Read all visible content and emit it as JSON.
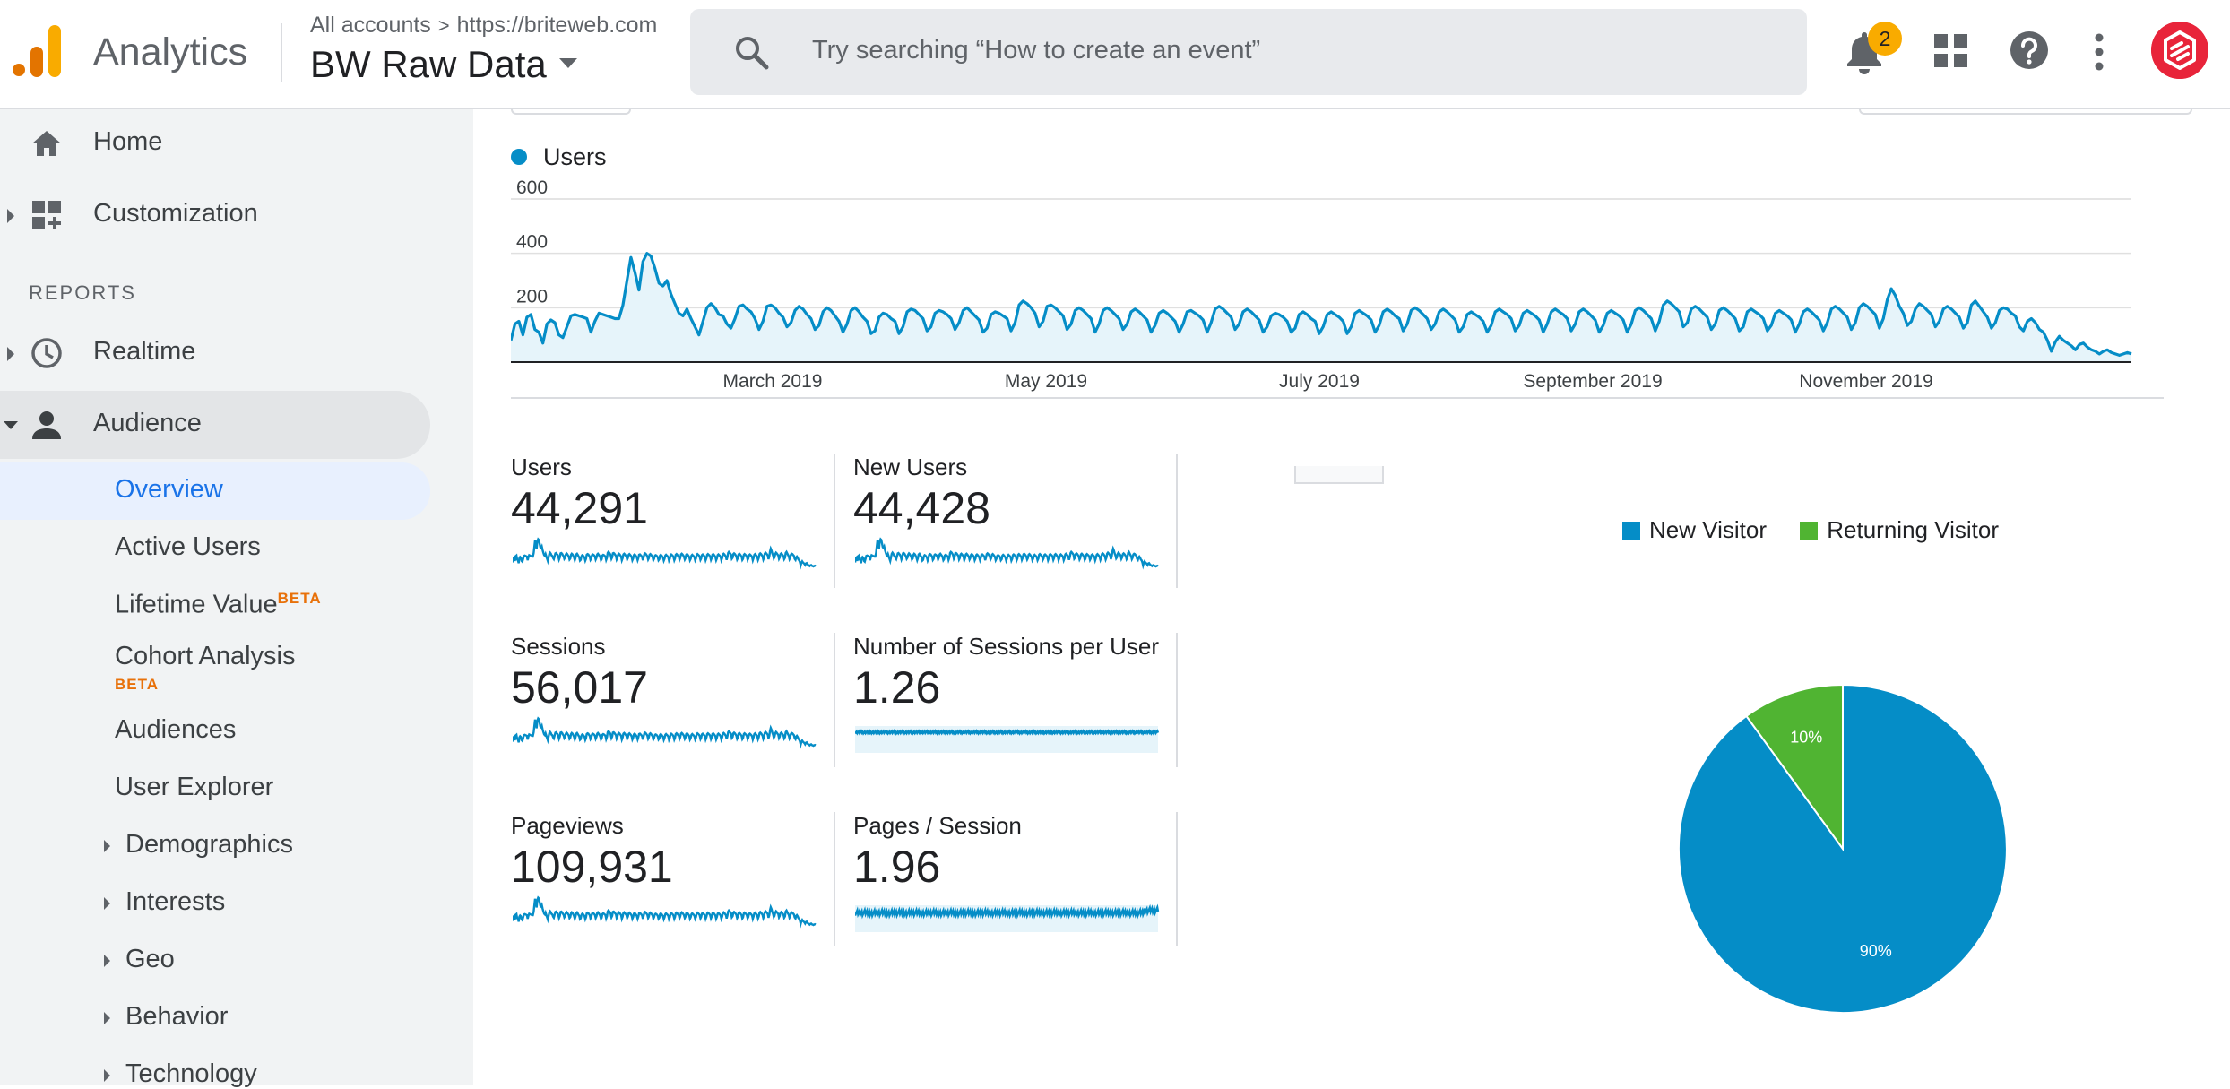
{
  "header": {
    "brand": "Analytics",
    "breadcrumb": {
      "accounts": "All accounts",
      "separator": ">",
      "property": "https://briteweb.com"
    },
    "view_name": "BW Raw Data",
    "search_placeholder": "Try searching “How to create an event”",
    "notifications_count": "2",
    "icons": [
      "analytics-logo-icon",
      "search-icon",
      "bell-icon",
      "apps-grid-icon",
      "help-icon",
      "more-vert-icon",
      "account-avatar"
    ]
  },
  "sidebar": {
    "home": "Home",
    "customization": "Customization",
    "reports_heading": "REPORTS",
    "realtime": "Realtime",
    "audience": "Audience",
    "audience_items": {
      "overview": "Overview",
      "active_users": "Active Users",
      "lifetime_value": "Lifetime Value",
      "lifetime_value_badge": "BETA",
      "cohort_analysis": "Cohort Analysis",
      "cohort_analysis_badge": "BETA",
      "audiences": "Audiences",
      "user_explorer": "User Explorer",
      "demographics": "Demographics",
      "interests": "Interests",
      "geo": "Geo",
      "behavior": "Behavior",
      "technology": "Technology"
    }
  },
  "colors": {
    "series": "#058dc7",
    "returning": "#50b432",
    "accent": "#1a73e8"
  },
  "chart_data": [
    {
      "type": "line",
      "series": [
        {
          "name": "Users",
          "pattern": "daily",
          "values": [
            80,
            140,
            150,
            100,
            165,
            175,
            120,
            110,
            70,
            140,
            155,
            145,
            100,
            90,
            130,
            170,
            175,
            170,
            165,
            160,
            110,
            150,
            180,
            175,
            170,
            165,
            160,
            160,
            210,
            300,
            385,
            330,
            265,
            370,
            400,
            390,
            345,
            290,
            280,
            300,
            250,
            215,
            180,
            170,
            195,
            160,
            130,
            100,
            150,
            200,
            215,
            200,
            175,
            170,
            140,
            125,
            160,
            205,
            210,
            195,
            185,
            160,
            120,
            150,
            205,
            210,
            200,
            180,
            165,
            130,
            145,
            190,
            205,
            195,
            175,
            160,
            120,
            135,
            185,
            200,
            190,
            170,
            150,
            110,
            140,
            190,
            200,
            185,
            165,
            150,
            105,
            115,
            165,
            180,
            175,
            160,
            150,
            105,
            130,
            185,
            195,
            190,
            175,
            160,
            115,
            130,
            180,
            190,
            185,
            175,
            160,
            120,
            145,
            190,
            200,
            185,
            170,
            155,
            110,
            125,
            175,
            185,
            180,
            170,
            160,
            115,
            145,
            210,
            225,
            215,
            200,
            180,
            130,
            150,
            205,
            210,
            200,
            185,
            170,
            120,
            140,
            190,
            200,
            190,
            175,
            160,
            110,
            140,
            190,
            200,
            190,
            175,
            160,
            120,
            140,
            185,
            195,
            185,
            170,
            155,
            110,
            135,
            180,
            190,
            180,
            165,
            150,
            110,
            140,
            185,
            190,
            180,
            170,
            155,
            110,
            145,
            195,
            205,
            195,
            180,
            165,
            120,
            140,
            185,
            195,
            185,
            170,
            155,
            110,
            130,
            170,
            180,
            175,
            165,
            150,
            110,
            125,
            175,
            185,
            175,
            160,
            150,
            105,
            130,
            175,
            185,
            175,
            165,
            150,
            105,
            130,
            180,
            190,
            180,
            170,
            155,
            110,
            135,
            185,
            195,
            185,
            170,
            160,
            115,
            140,
            190,
            200,
            190,
            175,
            160,
            120,
            140,
            185,
            195,
            185,
            170,
            155,
            110,
            130,
            175,
            185,
            175,
            165,
            150,
            110,
            135,
            185,
            195,
            185,
            175,
            160,
            115,
            135,
            180,
            190,
            180,
            170,
            155,
            110,
            140,
            185,
            195,
            185,
            175,
            160,
            115,
            140,
            185,
            195,
            185,
            170,
            155,
            110,
            135,
            180,
            190,
            180,
            170,
            155,
            110,
            140,
            190,
            200,
            190,
            175,
            160,
            115,
            150,
            210,
            225,
            215,
            200,
            185,
            130,
            145,
            195,
            205,
            195,
            180,
            165,
            120,
            140,
            190,
            200,
            190,
            175,
            160,
            115,
            130,
            185,
            195,
            185,
            175,
            160,
            115,
            135,
            180,
            190,
            180,
            170,
            155,
            110,
            140,
            185,
            195,
            185,
            170,
            155,
            115,
            145,
            195,
            205,
            195,
            180,
            165,
            120,
            145,
            200,
            215,
            205,
            190,
            175,
            125,
            160,
            230,
            270,
            245,
            205,
            180,
            135,
            150,
            195,
            215,
            205,
            190,
            175,
            130,
            150,
            195,
            205,
            195,
            180,
            165,
            125,
            145,
            210,
            225,
            205,
            185,
            165,
            125,
            145,
            190,
            200,
            195,
            180,
            170,
            130,
            115,
            150,
            160,
            145,
            120,
            110,
            80,
            40,
            75,
            95,
            80,
            70,
            60,
            45,
            65,
            70,
            55,
            45,
            40,
            30,
            40,
            45,
            35,
            30,
            25,
            30,
            35,
            30
          ]
        }
      ],
      "x_tick_labels": [
        "March 2019",
        "May 2019",
        "July 2019",
        "September 2019",
        "November 2019"
      ],
      "y_tick_labels": [
        "200",
        "400",
        "600"
      ],
      "ylim": [
        0,
        600
      ],
      "legend": "top-left",
      "grid": true
    },
    {
      "type": "pie",
      "slices": [
        {
          "name": "New Visitor",
          "value": 90,
          "label": "90%"
        },
        {
          "name": "Returning Visitor",
          "value": 10,
          "label": "10%"
        }
      ],
      "legend": "top"
    }
  ],
  "metrics": [
    {
      "key": "users",
      "label": "Users",
      "value": "44,291",
      "spark": "users",
      "spark_style": "line"
    },
    {
      "key": "new_users",
      "label": "New Users",
      "value": "44,428",
      "spark": "users",
      "spark_style": "line"
    },
    {
      "key": "sessions",
      "label": "Sessions",
      "value": "56,017",
      "spark": "users",
      "spark_style": "line"
    },
    {
      "key": "sessions_per_user",
      "label": "Number of Sessions per User",
      "value": "1.26",
      "spark": "flat",
      "spark_style": "area"
    },
    {
      "key": "pageviews",
      "label": "Pageviews",
      "value": "109,931",
      "spark": "users",
      "spark_style": "line"
    },
    {
      "key": "pages_per_session",
      "label": "Pages / Session",
      "value": "1.96",
      "spark": "noisy",
      "spark_style": "area"
    }
  ]
}
